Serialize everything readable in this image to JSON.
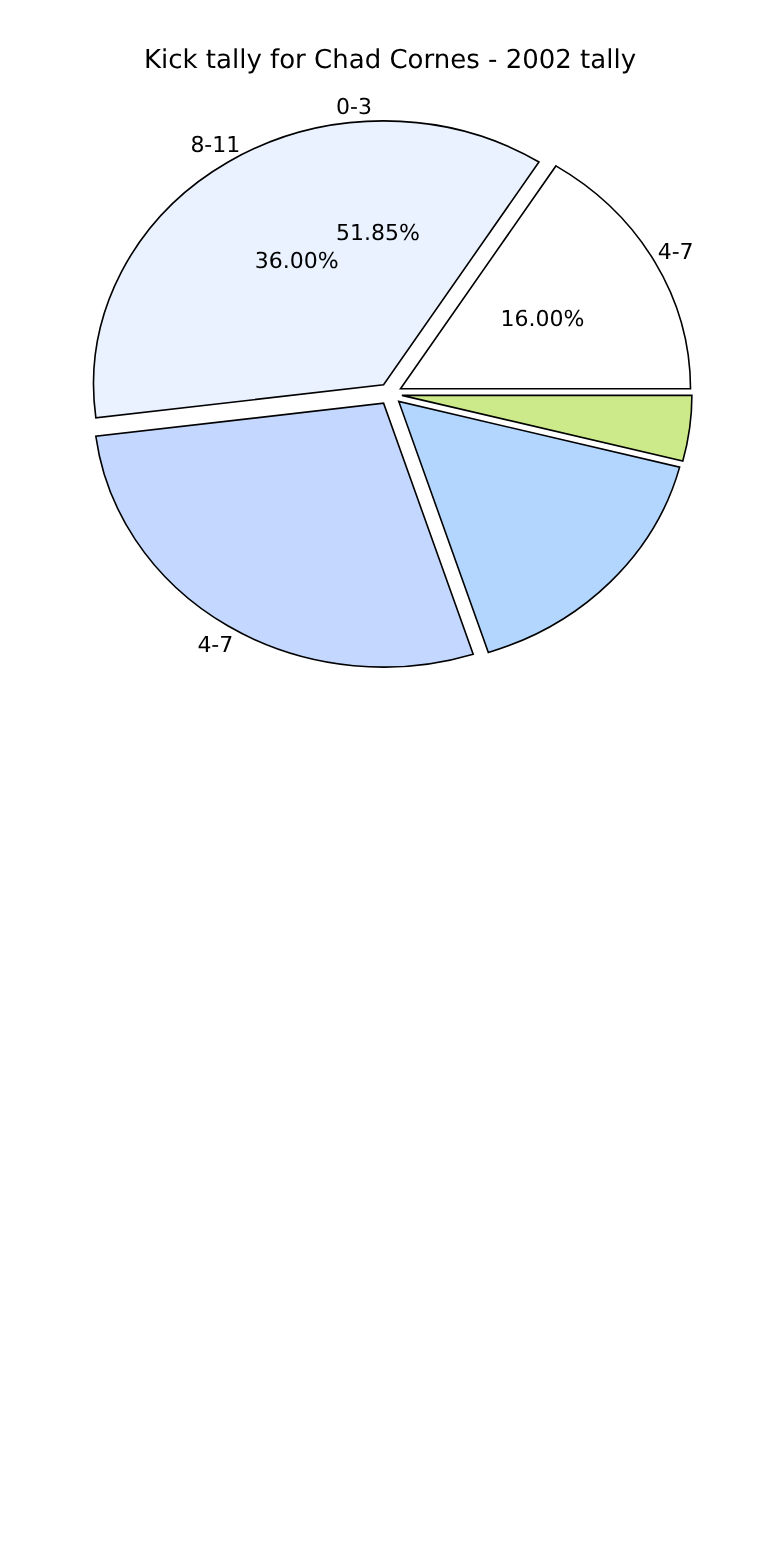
{
  "chart_data": {
    "type": "pie",
    "title": "Kick tally for Chad Cornes - 2002 tally",
    "categories": [
      "4-7",
      "8-11",
      "4-7",
      null,
      null
    ],
    "values": [
      16,
      36,
      28,
      16,
      4
    ],
    "colors": [
      "#ffffff",
      "#eaf2ff",
      "#c4d8ff",
      "#b3d6ff",
      "#cdea8a"
    ],
    "value_labels": [
      "16.00%",
      "36.00%",
      null,
      null,
      null
    ],
    "annotations": [
      "0-3",
      "51.85%"
    ]
  }
}
